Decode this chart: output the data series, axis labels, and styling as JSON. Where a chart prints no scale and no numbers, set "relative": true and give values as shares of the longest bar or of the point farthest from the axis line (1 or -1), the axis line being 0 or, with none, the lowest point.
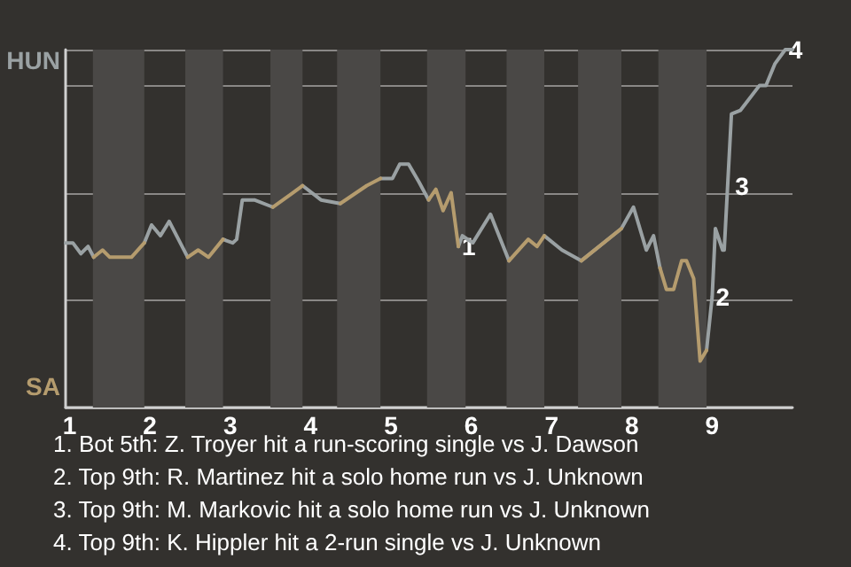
{
  "chart_data": {
    "type": "line",
    "x": [
      0.95,
      1.04,
      1.14,
      1.23,
      1.3,
      1.41,
      1.5,
      1.77,
      1.93,
      2.02,
      2.13,
      2.24,
      2.47,
      2.6,
      2.73,
      2.91,
      3.03,
      3.08,
      3.15,
      3.3,
      3.53,
      3.78,
      3.9,
      4.13,
      4.37,
      4.7,
      4.87,
      5.02,
      5.11,
      5.22,
      5.35,
      5.47,
      5.56,
      5.65,
      5.75,
      5.84,
      5.89,
      6.02,
      6.24,
      6.47,
      6.71,
      6.82,
      6.91,
      7.13,
      7.37,
      7.87,
      8.02,
      8.18,
      8.27,
      8.35,
      8.43,
      8.52,
      8.62,
      8.68,
      8.77,
      8.85,
      8.93,
      9,
      9.04,
      9.13,
      9.15,
      9.24,
      9.35,
      9.59,
      9.67,
      9.78,
      9.91,
      10
    ],
    "series": [
      {
        "color": "#9aa1a3",
        "values": [
          0.46,
          0.46,
          0.43,
          0.45,
          0.42,
          null,
          null,
          null,
          0.46,
          0.51,
          0.48,
          0.52,
          0.42,
          null,
          null,
          0.47,
          0.46,
          0.47,
          0.58,
          0.58,
          0.56,
          null,
          0.62,
          0.58,
          0.57,
          null,
          0.64,
          0.64,
          0.68,
          0.68,
          0.63,
          0.58,
          null,
          null,
          null,
          0.45,
          0.48,
          0.46,
          0.54,
          0.41,
          null,
          null,
          0.48,
          0.44,
          0.41,
          0.5,
          0.56,
          0.44,
          0.48,
          0.39,
          null,
          null,
          null,
          null,
          null,
          null,
          0.16,
          0.31,
          0.5,
          0.44,
          0.44,
          0.82,
          0.83,
          0.9,
          0.9,
          0.96,
          1,
          1
        ]
      },
      {
        "color": "#b59c6e",
        "values": [
          null,
          null,
          null,
          null,
          0.42,
          0.44,
          0.42,
          0.42,
          0.46,
          null,
          null,
          null,
          0.42,
          0.44,
          0.42,
          0.47,
          null,
          null,
          null,
          null,
          0.56,
          0.6,
          0.62,
          null,
          0.57,
          0.62,
          0.64,
          null,
          null,
          null,
          null,
          0.58,
          0.61,
          0.55,
          0.6,
          0.45,
          null,
          null,
          null,
          0.41,
          0.47,
          0.45,
          0.48,
          null,
          0.41,
          0.5,
          null,
          null,
          null,
          0.39,
          0.33,
          0.33,
          0.41,
          0.41,
          0.36,
          0.13,
          0.16,
          null,
          null,
          null,
          null,
          null,
          null,
          null,
          null,
          null,
          null,
          null
        ]
      }
    ],
    "relative": true,
    "xlim": [
      0.95,
      10
    ],
    "xticks": [
      1,
      2,
      3,
      4,
      5,
      6,
      7,
      8,
      9
    ],
    "grid": "y",
    "bands": [
      {
        "axis": "x",
        "from": 1.29,
        "to": 1.93,
        "color": "#4a4846"
      },
      {
        "axis": "x",
        "from": 2.44,
        "to": 2.91,
        "color": "#4a4846"
      },
      {
        "axis": "x",
        "from": 3.5,
        "to": 3.9,
        "color": "#4a4846"
      },
      {
        "axis": "x",
        "from": 4.33,
        "to": 4.87,
        "color": "#4a4846"
      },
      {
        "axis": "x",
        "from": 5.45,
        "to": 5.93,
        "color": "#4a4846"
      },
      {
        "axis": "x",
        "from": 6.44,
        "to": 6.91,
        "color": "#4a4846"
      },
      {
        "axis": "x",
        "from": 7.33,
        "to": 7.87,
        "color": "#4a4846"
      },
      {
        "axis": "x",
        "from": 8.33,
        "to": 8.93,
        "color": "#4a4846"
      }
    ],
    "annotations": [
      "HUN",
      "SA",
      {
        "text": "1",
        "x": 5.84,
        "y": 0.45
      },
      {
        "text": "2",
        "x": 9,
        "y": 0.31
      },
      {
        "text": "3",
        "x": 9.24,
        "y": 0.62
      },
      {
        "text": "4",
        "x": 9.91,
        "y": 1
      },
      "1. Bot 5th: Z. Troyer hit a run-scoring single vs J. Dawson",
      "2. Top 9th: R. Martinez hit a solo home run vs J. Unknown",
      "3. Top 9th: M. Markovic hit a solo home run vs J. Unknown",
      "4. Top 9th: K. Hippler hit a 2-run single vs J. Unknown"
    ]
  }
}
